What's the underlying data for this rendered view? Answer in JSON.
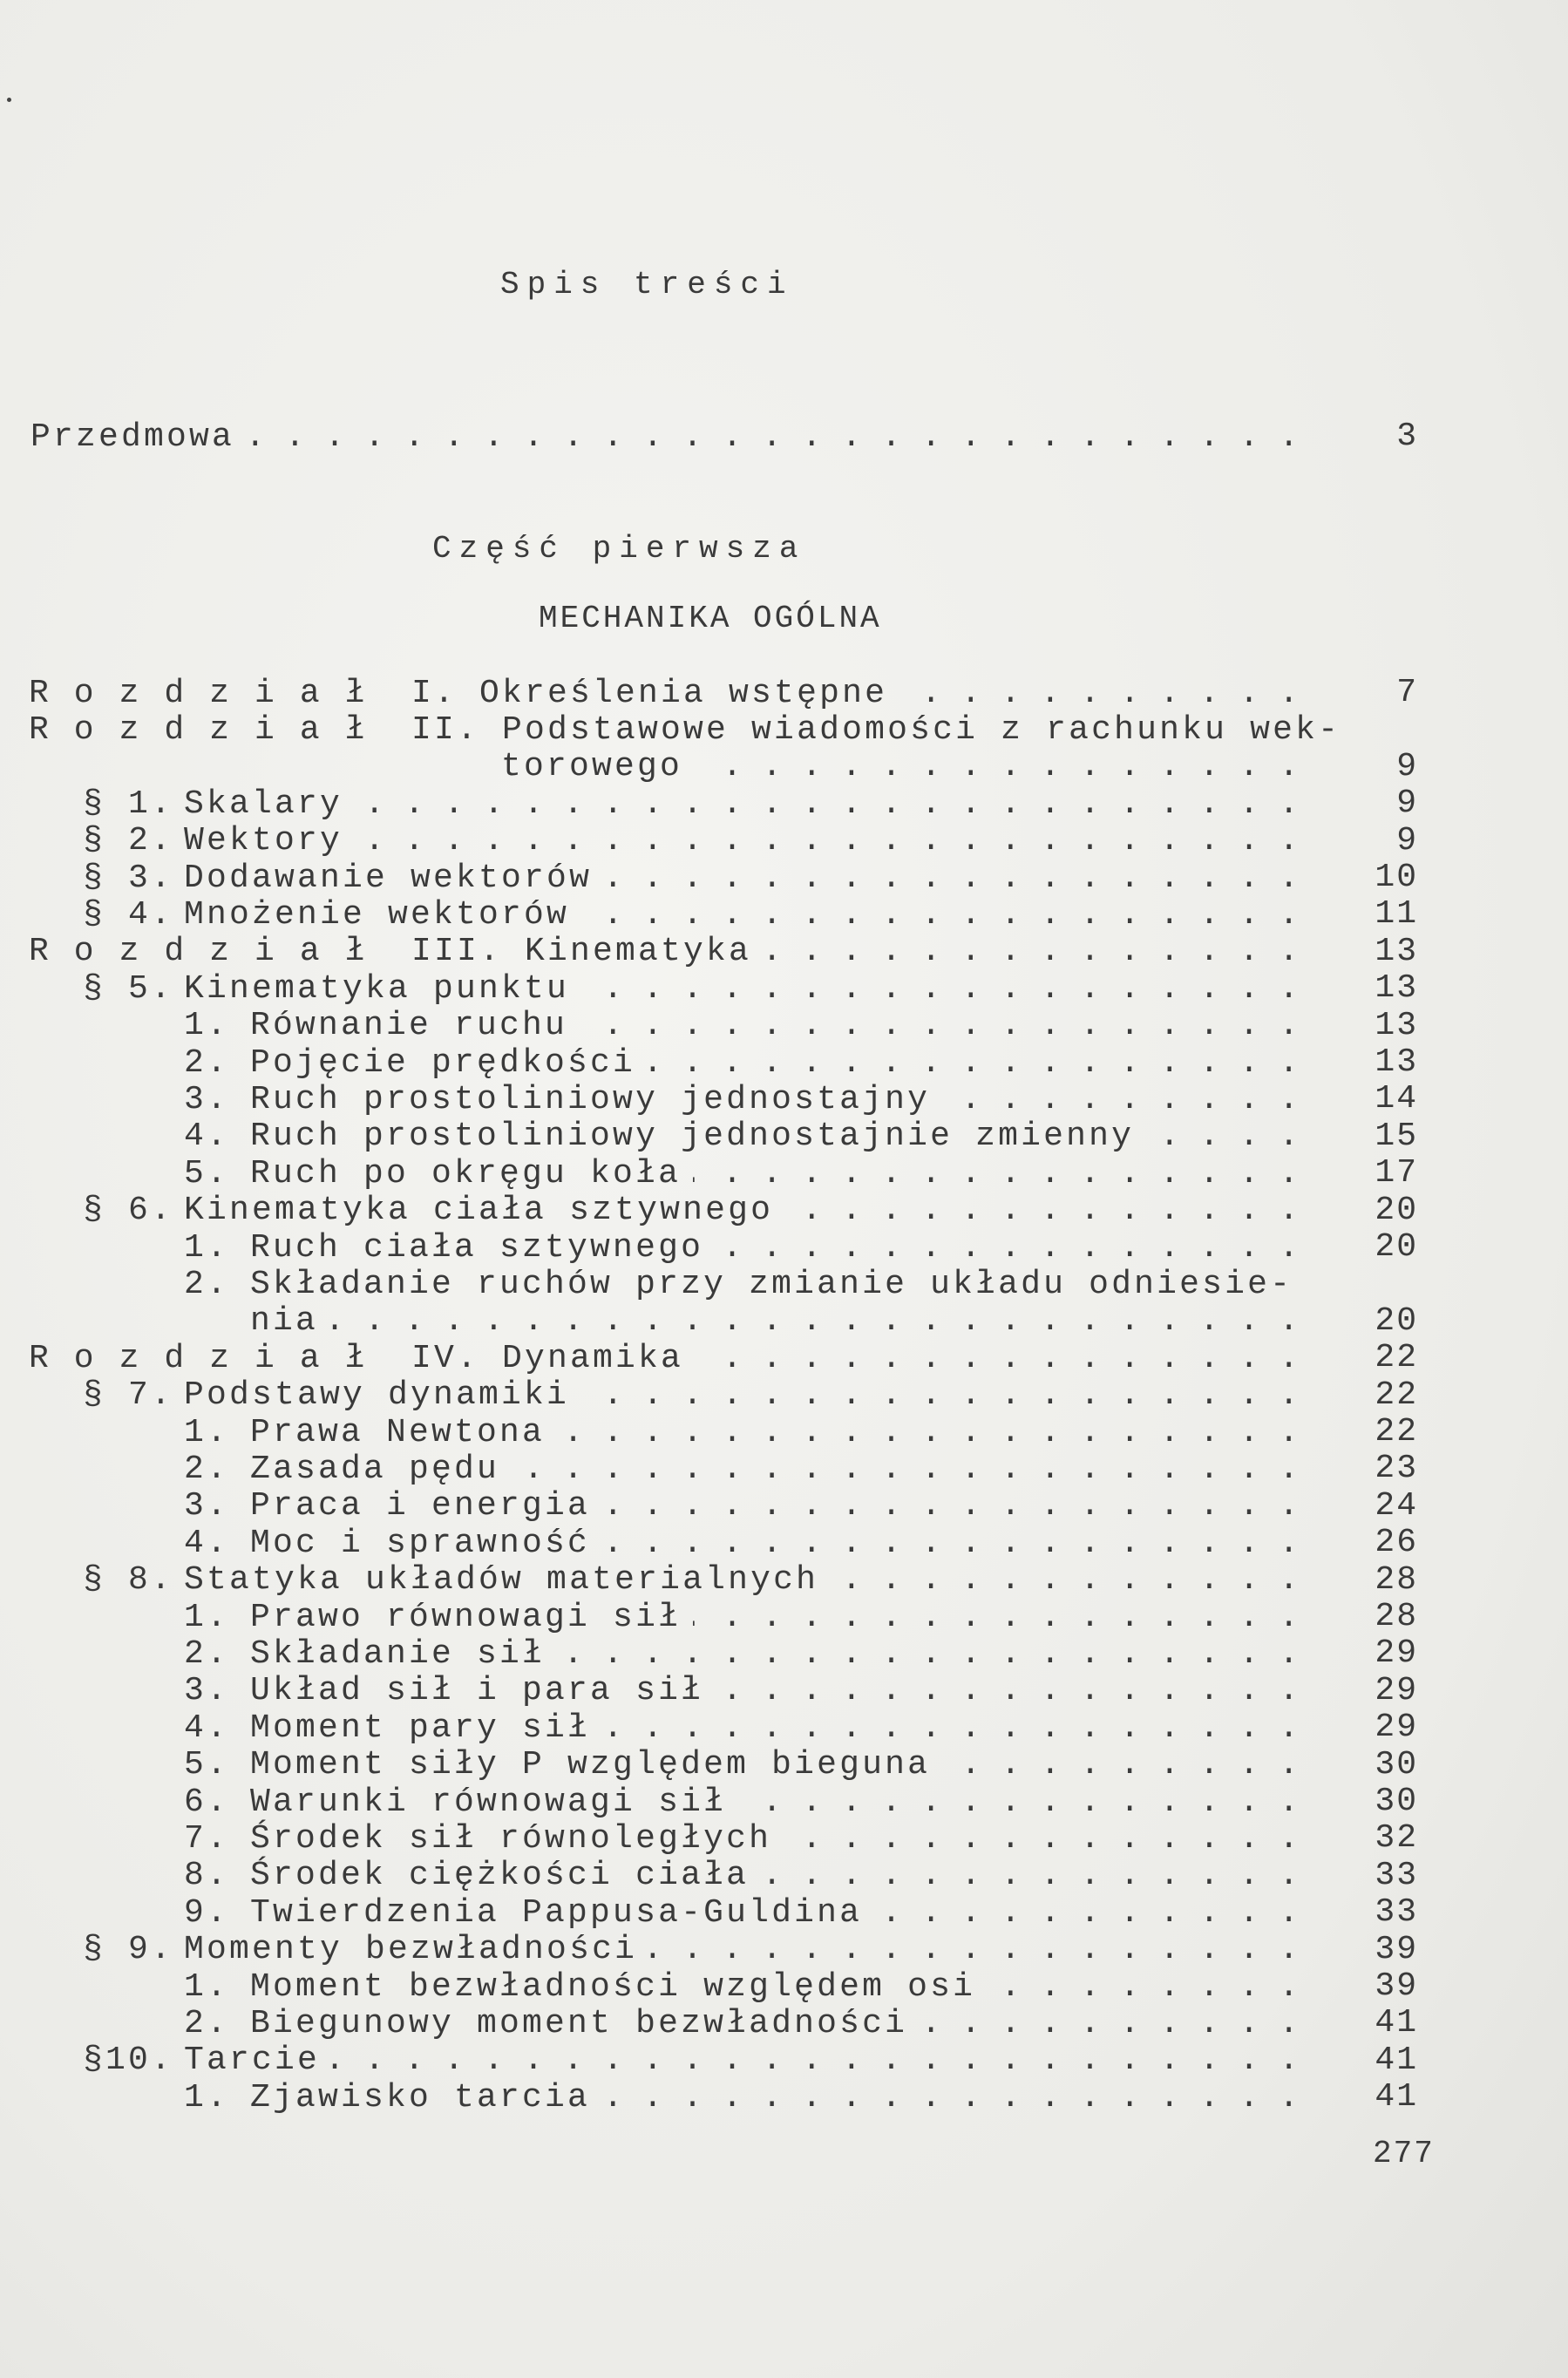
{
  "title": "Spis treści",
  "preface": {
    "text": "Przedmowa",
    "page": "3"
  },
  "part": "Część pierwsza",
  "section_title": "MECHANIKA OGÓLNA",
  "rows": [
    {
      "type": "chapter",
      "marker": "Rozdział",
      "text": "I. Określenia wstępne",
      "page": "7"
    },
    {
      "type": "chapter",
      "marker": "Rozdział",
      "text": "II. Podstawowe wiadomości z rachunku wek-",
      "page": ""
    },
    {
      "type": "chapter-cont",
      "marker": "",
      "text": "torowego",
      "page": "9"
    },
    {
      "type": "section",
      "marker": "§ 1.",
      "text": "Skalary",
      "page": "9"
    },
    {
      "type": "section",
      "marker": "§ 2.",
      "text": "Wektory",
      "page": "9"
    },
    {
      "type": "section",
      "marker": "§ 3.",
      "text": "Dodawanie wektorów",
      "page": "10"
    },
    {
      "type": "section",
      "marker": "§ 4.",
      "text": "Mnożenie wektorów",
      "page": "11"
    },
    {
      "type": "chapter",
      "marker": "Rozdział",
      "text": "III. Kinematyka",
      "page": "13"
    },
    {
      "type": "section",
      "marker": "§ 5.",
      "text": "Kinematyka punktu",
      "page": "13"
    },
    {
      "type": "sub",
      "marker": "1.",
      "text": "Równanie ruchu",
      "page": "13"
    },
    {
      "type": "sub",
      "marker": "2.",
      "text": "Pojęcie prędkości",
      "page": "13"
    },
    {
      "type": "sub",
      "marker": "3.",
      "text": "Ruch prostoliniowy jednostajny",
      "page": "14"
    },
    {
      "type": "sub",
      "marker": "4.",
      "text": "Ruch prostoliniowy jednostajnie zmienny",
      "page": "15"
    },
    {
      "type": "sub",
      "marker": "5.",
      "text": "Ruch po okręgu koła",
      "page": "17"
    },
    {
      "type": "section",
      "marker": "§ 6.",
      "text": "Kinematyka ciała sztywnego",
      "page": "20"
    },
    {
      "type": "sub",
      "marker": "1.",
      "text": "Ruch ciała sztywnego",
      "page": "20"
    },
    {
      "type": "sub",
      "marker": "2.",
      "text": "Składanie ruchów przy zmianie układu odniesie-",
      "page": ""
    },
    {
      "type": "sub-cont",
      "marker": "",
      "text": "nia",
      "page": "20"
    },
    {
      "type": "chapter",
      "marker": "Rozdział",
      "text": "IV. Dynamika",
      "page": "22"
    },
    {
      "type": "section",
      "marker": "§ 7.",
      "text": "Podstawy dynamiki",
      "page": "22"
    },
    {
      "type": "sub",
      "marker": "1.",
      "text": "Prawa Newtona",
      "page": "22"
    },
    {
      "type": "sub",
      "marker": "2.",
      "text": "Zasada pędu",
      "page": "23"
    },
    {
      "type": "sub",
      "marker": "3.",
      "text": "Praca i energia",
      "page": "24"
    },
    {
      "type": "sub",
      "marker": "4.",
      "text": "Moc i sprawność",
      "page": "26"
    },
    {
      "type": "section",
      "marker": "§ 8.",
      "text": "Statyka układów materialnych",
      "page": "28"
    },
    {
      "type": "sub",
      "marker": "1.",
      "text": "Prawo równowagi sił",
      "page": "28"
    },
    {
      "type": "sub",
      "marker": "2.",
      "text": "Składanie sił",
      "page": "29"
    },
    {
      "type": "sub",
      "marker": "3.",
      "text": "Układ sił i para sił",
      "page": "29"
    },
    {
      "type": "sub",
      "marker": "4.",
      "text": "Moment pary sił",
      "page": "29"
    },
    {
      "type": "sub",
      "marker": "5.",
      "text": "Moment siły P względem bieguna",
      "page": "30"
    },
    {
      "type": "sub",
      "marker": "6.",
      "text": "Warunki równowagi sił",
      "page": "30"
    },
    {
      "type": "sub",
      "marker": "7.",
      "text": "Środek sił równoległych",
      "page": "32"
    },
    {
      "type": "sub",
      "marker": "8.",
      "text": "Środek ciężkości ciała",
      "page": "33"
    },
    {
      "type": "sub",
      "marker": "9.",
      "text": "Twierdzenia Pappusa-Guldina",
      "page": "33"
    },
    {
      "type": "section",
      "marker": "§ 9.",
      "text": "Momenty bezwładności",
      "page": "39"
    },
    {
      "type": "sub",
      "marker": "1.",
      "text": "Moment bezwładności względem osi",
      "page": "39"
    },
    {
      "type": "sub",
      "marker": "2.",
      "text": "Biegunowy moment bezwładności",
      "page": "41"
    },
    {
      "type": "section",
      "marker": "§10.",
      "text": "Tarcie",
      "page": "41"
    },
    {
      "type": "sub",
      "marker": "1.",
      "text": "Zjawisko tarcia",
      "page": "41"
    }
  ],
  "folio": "277",
  "colors": {
    "paper": "#efefec",
    "ink": "#3a3a3a"
  }
}
